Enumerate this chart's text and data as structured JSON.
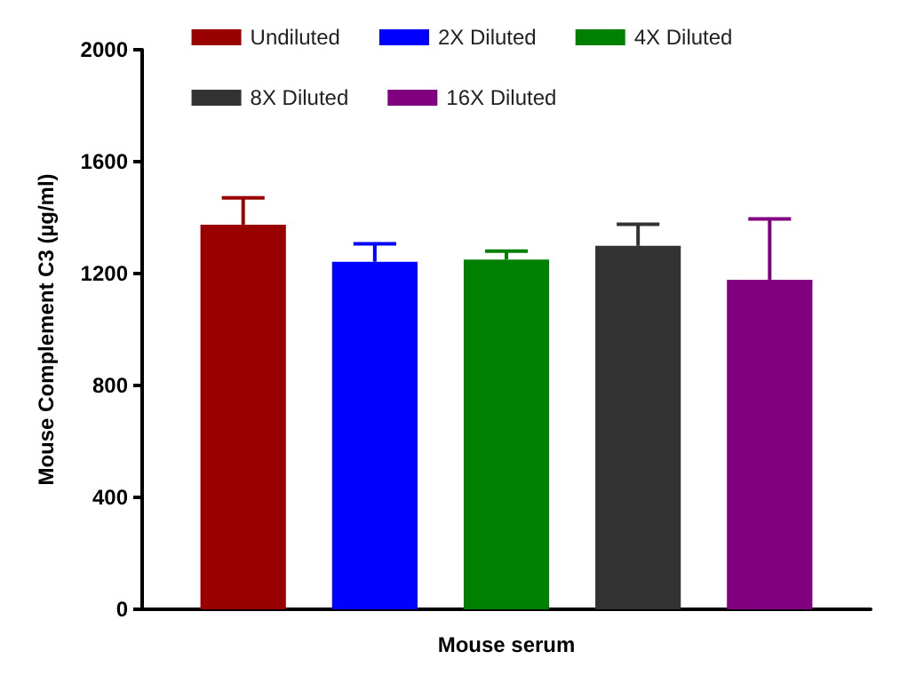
{
  "chart_data": {
    "type": "bar",
    "ylabel": "Mouse Complement C3 (µg/ml)",
    "xlabel": "Mouse serum",
    "categories": [
      null
    ],
    "series": [
      {
        "name": "Undiluted",
        "color": "#990000",
        "values": [
          1375
        ],
        "errors": [
          96
        ]
      },
      {
        "name": "2X Diluted",
        "color": "#0000ff",
        "values": [
          1242
        ],
        "errors": [
          64
        ]
      },
      {
        "name": "4X Diluted",
        "color": "#008000",
        "values": [
          1250
        ],
        "errors": [
          30
        ]
      },
      {
        "name": "8X Diluted",
        "color": "#333333",
        "values": [
          1299
        ],
        "errors": [
          77
        ]
      },
      {
        "name": "16X Diluted",
        "color": "#800080",
        "values": [
          1178
        ],
        "errors": [
          217
        ]
      }
    ],
    "ylim": [
      0,
      2000
    ],
    "yticks": [
      0,
      400,
      800,
      1200,
      1600,
      2000
    ],
    "grid": false,
    "legend": "top"
  }
}
